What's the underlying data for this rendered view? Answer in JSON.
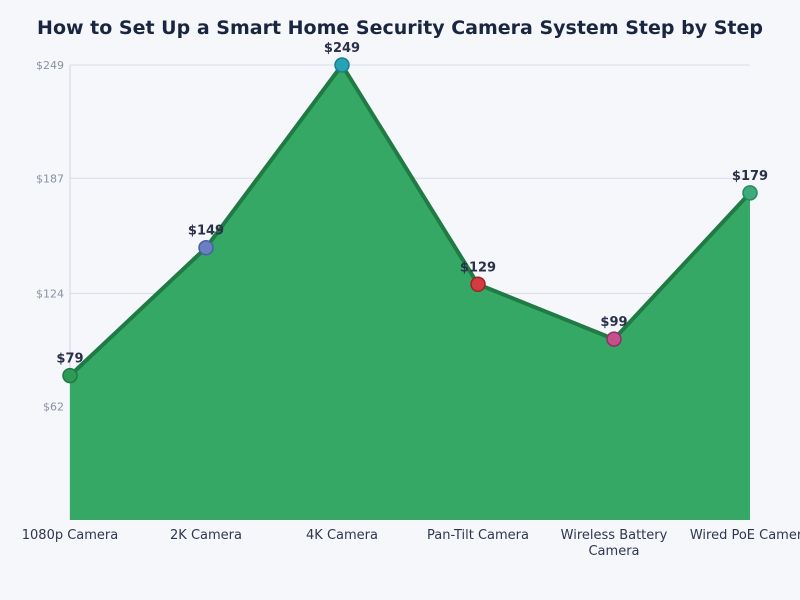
{
  "chart_data": {
    "type": "area",
    "title": "How to Set Up a Smart Home Security Camera System Step by Step",
    "xlabel": "",
    "ylabel": "",
    "categories": [
      "1080p Camera",
      "2K Camera",
      "4K Camera",
      "Pan-Tilt Camera",
      "Wireless Battery Camera",
      "Wired PoE Camera"
    ],
    "category_lines": [
      [
        "1080p Camera"
      ],
      [
        "2K Camera"
      ],
      [
        "4K Camera"
      ],
      [
        "Pan-Tilt Camera"
      ],
      [
        "Wireless Battery",
        "Camera"
      ],
      [
        "Wired PoE Camera"
      ]
    ],
    "values": [
      79,
      149,
      249,
      129,
      99,
      179
    ],
    "data_labels": [
      "$79",
      "$149",
      "$249",
      "$129",
      "$99",
      "$179"
    ],
    "ylim": [
      0,
      249
    ],
    "yticks": [
      62,
      124,
      187,
      249
    ],
    "ytick_labels": [
      "$62",
      "$124",
      "$187",
      "$249"
    ],
    "grid": true,
    "colors": {
      "fill": "#36a865",
      "line": "#1f7a43",
      "markers": [
        "#2e9a55",
        "#6a80c2",
        "#27a3b6",
        "#d23b41",
        "#c4508b",
        "#3dab7c"
      ],
      "marker_strokes": [
        "#1f7a43",
        "#4a5fa5",
        "#1d7f90",
        "#9e2228",
        "#8f2f63",
        "#2a8a5e"
      ]
    }
  }
}
